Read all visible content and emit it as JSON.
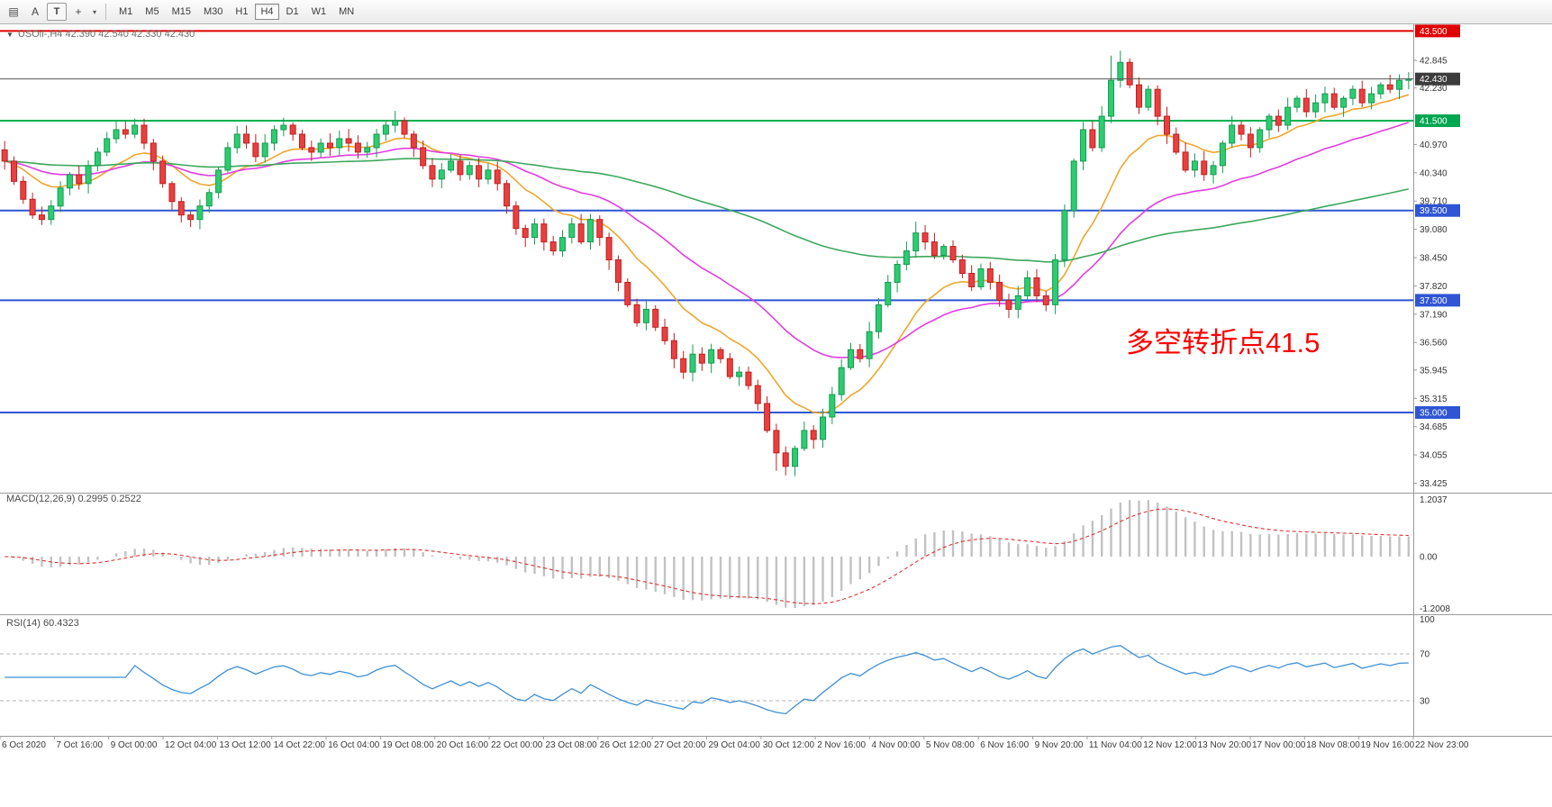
{
  "toolbar": {
    "tools": [
      {
        "name": "chart-window-icon",
        "glyph": "▤",
        "boxed": false
      },
      {
        "name": "annotation-a-icon",
        "glyph": "A",
        "boxed": false
      },
      {
        "name": "text-tool-icon",
        "glyph": "T",
        "boxed": true
      },
      {
        "name": "crosshair-tool-icon",
        "glyph": "+",
        "boxed": false,
        "caret": true
      }
    ],
    "timeframes": [
      "M1",
      "M5",
      "M15",
      "M30",
      "H1",
      "H4",
      "D1",
      "W1",
      "MN"
    ],
    "selected_timeframe": "H4"
  },
  "chart": {
    "collapse_arrow": "▼",
    "symbol_title": "USOil-,H4 42.390 42.540 42.330 42.430",
    "macd_title": "MACD(12,26,9) 0.2995 0.2522",
    "rsi_title": "RSI(14) 60.4323"
  },
  "chart_data": {
    "type": "candlestick",
    "symbol": "USOil-",
    "timeframe": "H4",
    "ohlc_display": {
      "open": "42.390",
      "high": "42.540",
      "low": "42.330",
      "close": "42.430"
    },
    "current_price": 42.43,
    "y_range": [
      33.425,
      43.5
    ],
    "grid": false,
    "y_axis_labels": [
      "42.845",
      "42.230",
      "40.970",
      "40.340",
      "39.710",
      "39.080",
      "38.450",
      "37.820",
      "37.190",
      "36.560",
      "35.945",
      "35.315",
      "34.685",
      "34.055",
      "33.425"
    ],
    "price_tags": [
      {
        "text": "43.500",
        "value": 43.5,
        "color": "#e00000"
      },
      {
        "text": "42.430",
        "value": 42.43,
        "color": "#3c3c3c"
      },
      {
        "text": "41.500",
        "value": 41.5,
        "color": "#00a650"
      },
      {
        "text": "39.500",
        "value": 39.5,
        "color": "#2f55d4"
      },
      {
        "text": "37.500",
        "value": 37.5,
        "color": "#2f55d4"
      },
      {
        "text": "35.000",
        "value": 35.0,
        "color": "#2f55d4"
      }
    ],
    "levels": [
      {
        "value": 43.5,
        "color": "#e00000"
      },
      {
        "value": 41.5,
        "color": "#00b050"
      },
      {
        "value": 39.5,
        "color": "#2f55d4"
      },
      {
        "value": 37.5,
        "color": "#2f55d4"
      },
      {
        "value": 35.0,
        "color": "#2f55d4"
      }
    ],
    "colors": {
      "bull": "#2ecc71",
      "bull_border": "#159a52",
      "bear": "#e84040",
      "bear_border": "#bf1f1f"
    },
    "overlays": [
      {
        "name": "ma-fast",
        "period": 12,
        "color": "#efa72e"
      },
      {
        "name": "ma-mid",
        "period": 30,
        "color": "#e23de2"
      },
      {
        "name": "ma-slow",
        "period": 110,
        "color": "#3da75c"
      }
    ],
    "closes": [
      40.6,
      40.15,
      39.75,
      39.4,
      39.3,
      39.6,
      40.0,
      40.3,
      40.1,
      40.5,
      40.8,
      41.1,
      41.3,
      41.2,
      41.4,
      41.0,
      40.6,
      40.1,
      39.7,
      39.4,
      39.3,
      39.6,
      39.9,
      40.4,
      40.9,
      41.2,
      41.0,
      40.7,
      41.0,
      41.3,
      41.4,
      41.2,
      40.9,
      40.8,
      41.0,
      40.9,
      41.1,
      41.0,
      40.8,
      40.9,
      41.2,
      41.4,
      41.5,
      41.2,
      40.9,
      40.5,
      40.2,
      40.4,
      40.6,
      40.3,
      40.5,
      40.2,
      40.4,
      40.1,
      39.6,
      39.1,
      38.9,
      39.2,
      38.8,
      38.6,
      38.9,
      39.2,
      38.8,
      39.3,
      38.9,
      38.4,
      37.9,
      37.4,
      37.0,
      37.3,
      36.9,
      36.6,
      36.2,
      35.9,
      36.3,
      36.1,
      36.4,
      36.2,
      35.8,
      35.9,
      35.6,
      35.2,
      34.6,
      34.1,
      33.8,
      34.2,
      34.6,
      34.4,
      34.9,
      35.4,
      36.0,
      36.4,
      36.2,
      36.8,
      37.4,
      37.9,
      38.3,
      38.6,
      39.0,
      38.8,
      38.5,
      38.7,
      38.4,
      38.1,
      37.8,
      38.2,
      37.9,
      37.5,
      37.3,
      37.6,
      38.0,
      37.6,
      37.4,
      38.4,
      39.5,
      40.6,
      41.3,
      40.9,
      41.6,
      42.4,
      42.8,
      42.3,
      41.8,
      42.2,
      41.6,
      41.2,
      40.8,
      40.4,
      40.6,
      40.3,
      40.5,
      41.0,
      41.4,
      41.2,
      40.9,
      41.3,
      41.6,
      41.4,
      41.8,
      42.0,
      41.7,
      41.9,
      42.1,
      41.8,
      42.0,
      42.2,
      41.9,
      42.1,
      42.3,
      42.2,
      42.4,
      42.43
    ],
    "wick_overrides": {
      "14": {
        "h": 41.55
      },
      "42": {
        "h": 41.72
      },
      "83": {
        "l": 33.7
      },
      "84": {
        "l": 33.6
      },
      "98": {
        "h": 39.25
      },
      "119": {
        "h": 42.95
      },
      "120": {
        "h": 43.06
      }
    },
    "macd": {
      "fast": 12,
      "slow": 26,
      "signal": 9,
      "axis_labels": [
        "1.2037",
        "0.00",
        "-1.2008"
      ]
    },
    "rsi": {
      "period": 14,
      "levels": [
        70,
        30
      ],
      "axis_labels": [
        "100",
        "70",
        "30"
      ]
    },
    "x_labels": [
      "6 Oct 2020",
      "7 Oct 16:00",
      "9 Oct 00:00",
      "12 Oct 04:00",
      "13 Oct 12:00",
      "14 Oct 22:00",
      "16 Oct 04:00",
      "19 Oct 08:00",
      "20 Oct 16:00",
      "22 Oct 00:00",
      "23 Oct 08:00",
      "26 Oct 12:00",
      "27 Oct 20:00",
      "29 Oct 04:00",
      "30 Oct 12:00",
      "2 Nov 16:00",
      "4 Nov 00:00",
      "5 Nov 08:00",
      "6 Nov 16:00",
      "9 Nov 20:00",
      "11 Nov 04:00",
      "12 Nov 12:00",
      "13 Nov 20:00",
      "17 Nov 00:00",
      "18 Nov 08:00",
      "19 Nov 16:00",
      "22 Nov 23:00"
    ],
    "annotation": {
      "text": "多空转折点41.5",
      "color": "#ff0000"
    }
  }
}
